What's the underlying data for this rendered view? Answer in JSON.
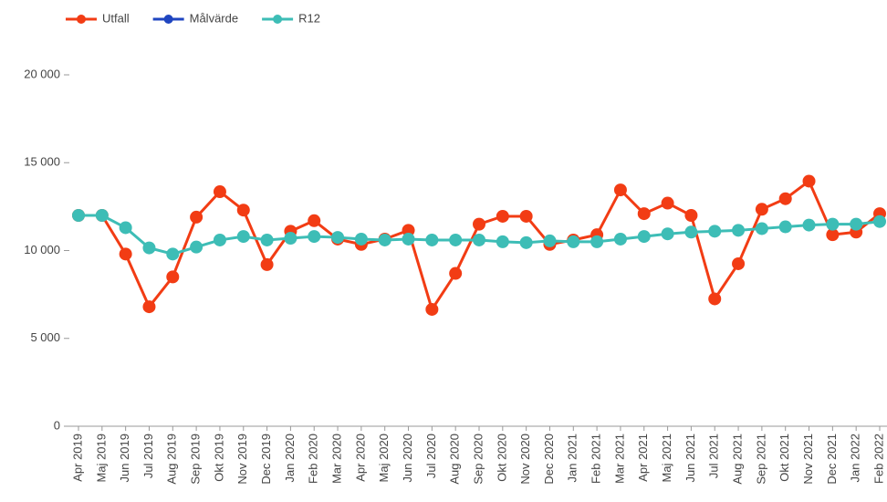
{
  "chart_data": {
    "type": "line",
    "categories": [
      "Apr 2019",
      "Maj 2019",
      "Jun 2019",
      "Jul 2019",
      "Aug 2019",
      "Sep 2019",
      "Okt 2019",
      "Nov 2019",
      "Dec 2019",
      "Jan 2020",
      "Feb 2020",
      "Mar 2020",
      "Apr 2020",
      "Maj 2020",
      "Jun 2020",
      "Jul 2020",
      "Aug 2020",
      "Sep 2020",
      "Okt 2020",
      "Nov 2020",
      "Dec 2020",
      "Jan 2021",
      "Feb 2021",
      "Mar 2021",
      "Apr 2021",
      "Maj 2021",
      "Jun 2021",
      "Jul 2021",
      "Aug 2021",
      "Sep 2021",
      "Okt 2021",
      "Nov 2021",
      "Dec 2021",
      "Jan 2022",
      "Feb 2022"
    ],
    "series": [
      {
        "name": "Utfall",
        "color": "#f23c14",
        "values": [
          12000,
          12000,
          9800,
          6800,
          8500,
          11900,
          13350,
          12300,
          9200,
          11100,
          11700,
          10650,
          10350,
          10650,
          11150,
          6650,
          8700,
          11500,
          11950,
          11950,
          10350,
          10600,
          10900,
          13450,
          12100,
          12700,
          12000,
          7250,
          9250,
          12350,
          12950,
          13950,
          10900,
          11050,
          12100
        ]
      },
      {
        "name": "Målvärde",
        "color": "#1f45c0",
        "values": [
          null,
          null,
          null,
          null,
          null,
          null,
          null,
          null,
          null,
          null,
          null,
          null,
          null,
          null,
          null,
          null,
          null,
          null,
          null,
          null,
          null,
          null,
          null,
          null,
          null,
          null,
          null,
          null,
          null,
          null,
          null,
          null,
          null,
          null,
          null
        ]
      },
      {
        "name": "R12",
        "color": "#3dbdb6",
        "values": [
          12000,
          12000,
          11300,
          10150,
          9800,
          10200,
          10600,
          10800,
          10600,
          10700,
          10800,
          10750,
          10650,
          10600,
          10650,
          10600,
          10600,
          10600,
          10500,
          10450,
          10550,
          10500,
          10500,
          10650,
          10800,
          10950,
          11050,
          11100,
          11150,
          11250,
          11350,
          11450,
          11500,
          11500,
          11650
        ]
      }
    ],
    "ylim": [
      0,
      20000
    ],
    "yticks": [
      0,
      {
        "value": 5000,
        "label": "5 000"
      },
      {
        "value": 10000,
        "label": "10 000"
      },
      {
        "value": 15000,
        "label": "15 000"
      },
      {
        "value": 20000,
        "label": "20 000"
      }
    ],
    "grid": false
  }
}
